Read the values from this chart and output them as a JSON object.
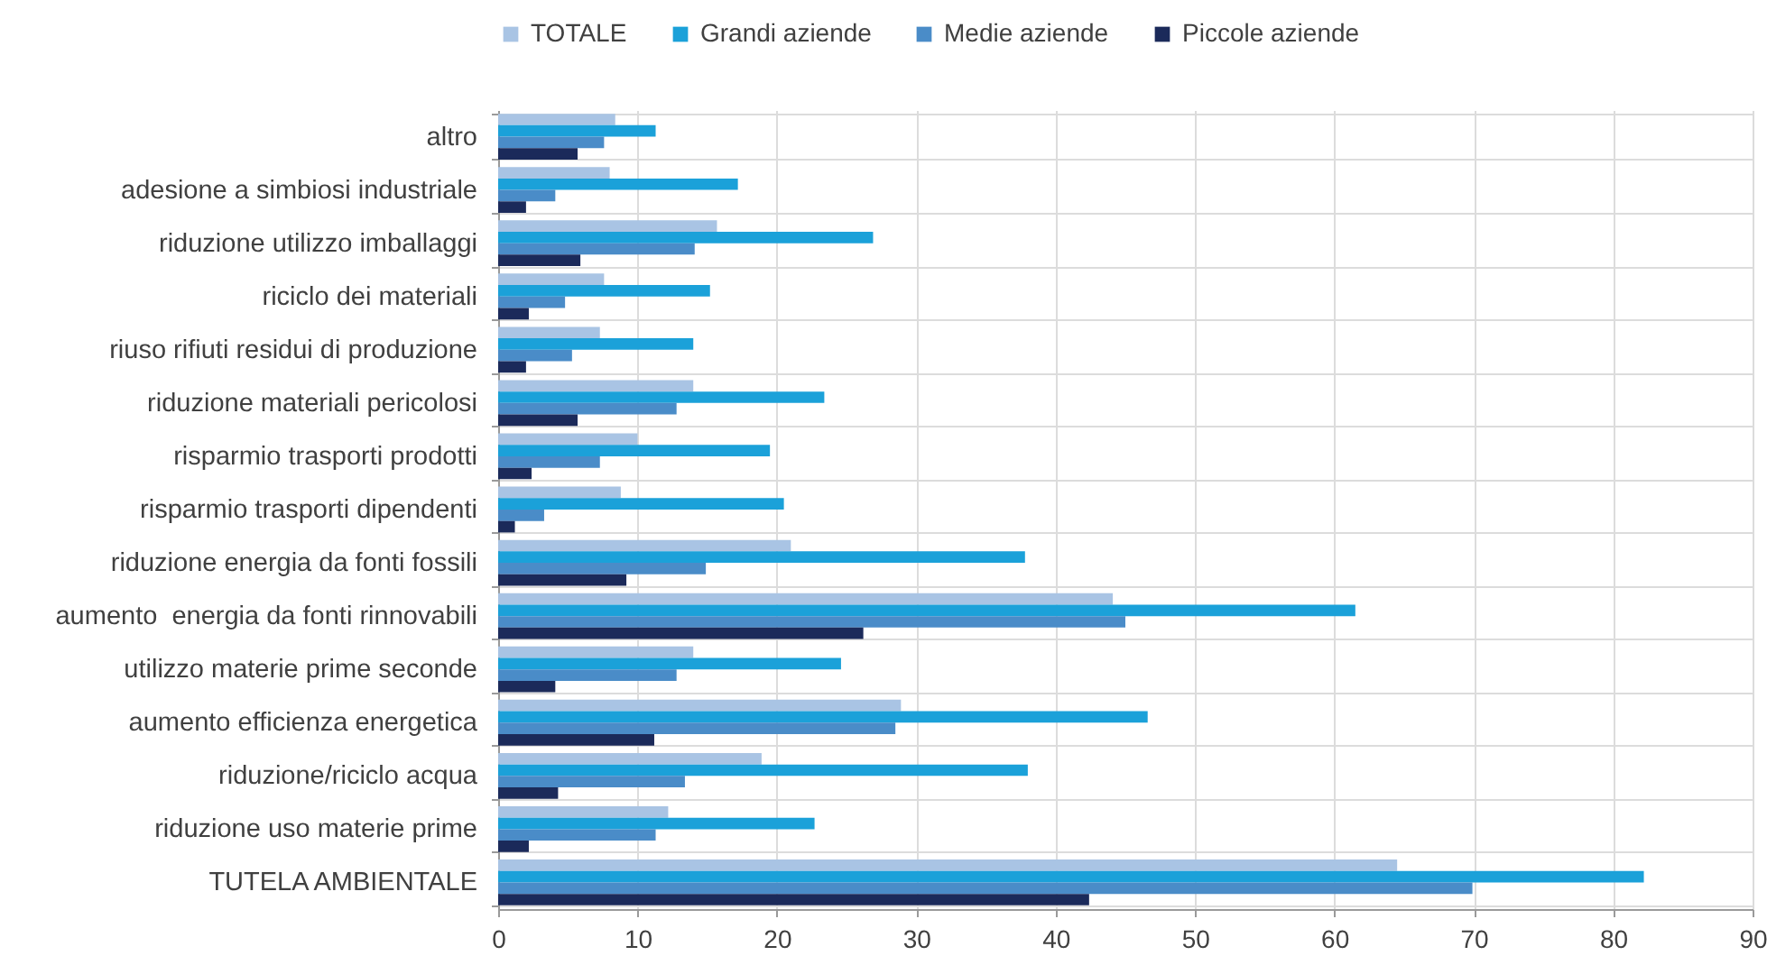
{
  "chart_data": {
    "type": "bar",
    "orientation": "horizontal",
    "categories": [
      "altro",
      "adesione a simbiosi industriale",
      "riduzione utilizzo imballaggi",
      "riciclo dei materiali",
      "riuso rifiuti residui di produzione",
      "riduzione materiali pericolosi",
      "risparmio trasporti prodotti",
      "risparmio trasporti dipendenti",
      "riduzione energia da fonti fossili",
      "aumento  energia da fonti rinnovabili",
      "utilizzo materie prime seconde",
      "aumento efficienza energetica",
      "riduzione/riciclo acqua",
      "riduzione uso materie prime",
      "TUTELA AMBIENTALE"
    ],
    "series": [
      {
        "name": "TOTALE",
        "color": "#a9c4e4",
        "values": [
          8.4,
          8.0,
          15.7,
          7.6,
          7.3,
          14.0,
          10.0,
          8.8,
          21.0,
          44.1,
          14.0,
          28.9,
          18.9,
          12.2,
          64.5
        ]
      },
      {
        "name": "Grandi aziende",
        "color": "#1ba1d9",
        "values": [
          11.3,
          17.2,
          26.9,
          15.2,
          14.0,
          23.4,
          19.5,
          20.5,
          37.8,
          61.5,
          24.6,
          46.6,
          38.0,
          22.7,
          82.2
        ]
      },
      {
        "name": "Medie aziende",
        "color": "#4a8cc8",
        "values": [
          7.6,
          4.1,
          14.1,
          4.8,
          5.3,
          12.8,
          7.3,
          3.3,
          14.9,
          45.0,
          12.8,
          28.5,
          13.4,
          11.3,
          69.9
        ]
      },
      {
        "name": "Piccole aziende",
        "color": "#1b2a5a",
        "values": [
          5.7,
          2.0,
          5.9,
          2.2,
          2.0,
          5.7,
          2.4,
          1.2,
          9.2,
          26.2,
          4.1,
          11.2,
          4.3,
          2.2,
          42.4
        ]
      }
    ],
    "xlim": [
      0,
      90
    ],
    "xticks": [
      0,
      10,
      20,
      30,
      40,
      50,
      60,
      70,
      80,
      90
    ],
    "grid": true,
    "legend": "top"
  }
}
